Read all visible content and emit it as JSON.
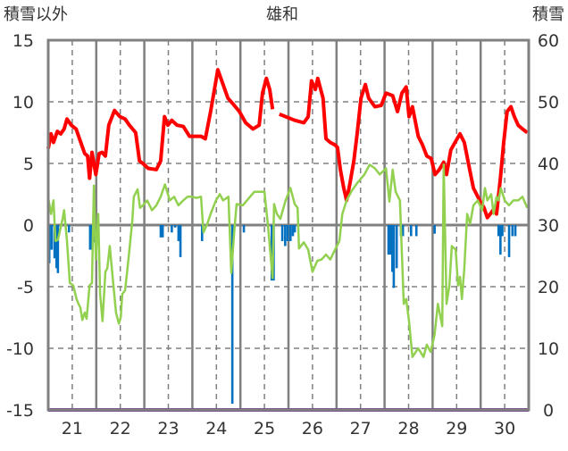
{
  "chart_data": {
    "type": "line",
    "title": "雄和",
    "ylabel_left": "積雪以外",
    "ylabel_right": "積雪",
    "x_unit": "day of month (fractional, 21.0 = 21st 00:00)",
    "xlim": [
      21,
      31
    ],
    "xticks": [
      {
        "at": 21.5,
        "label": "21"
      },
      {
        "at": 22.5,
        "label": "22"
      },
      {
        "at": 23.5,
        "label": "23"
      },
      {
        "at": 24.5,
        "label": "24"
      },
      {
        "at": 25.5,
        "label": "25"
      },
      {
        "at": 26.5,
        "label": "26"
      },
      {
        "at": 27.5,
        "label": "27"
      },
      {
        "at": 28.5,
        "label": "28"
      },
      {
        "at": 29.5,
        "label": "29"
      },
      {
        "at": 30.5,
        "label": "30"
      }
    ],
    "ylim_left": [
      -15,
      15
    ],
    "yticks_left": [
      "15",
      "10",
      "5",
      "0",
      "-5",
      "-10",
      "-15"
    ],
    "ylim_right": [
      0,
      60
    ],
    "yticks_right": [
      "60",
      "50",
      "40",
      "30",
      "20",
      "10",
      "0"
    ],
    "grid": true,
    "colors": {
      "red": "#ff0000",
      "green": "#92d050",
      "blue": "#0070c0",
      "purple": "#7030a0",
      "frame": "#808080"
    },
    "series": [
      {
        "name": "red",
        "axis": "left",
        "kind": "line",
        "points": [
          [
            21.0,
            6.2
          ],
          [
            21.06,
            7.4
          ],
          [
            21.11,
            6.7
          ],
          [
            21.19,
            7.6
          ],
          [
            21.26,
            7.4
          ],
          [
            21.33,
            7.8
          ],
          [
            21.39,
            8.6
          ],
          [
            21.48,
            8.1
          ],
          [
            21.58,
            7.8
          ],
          [
            21.67,
            6.8
          ],
          [
            21.76,
            5.8
          ],
          [
            21.82,
            5.6
          ],
          [
            21.86,
            3.8
          ],
          [
            21.91,
            5.9
          ],
          [
            21.99,
            4.1
          ],
          [
            22.06,
            5.8
          ],
          [
            22.12,
            5.9
          ],
          [
            22.19,
            5.6
          ],
          [
            22.26,
            8.1
          ],
          [
            22.38,
            9.3
          ],
          [
            22.49,
            8.8
          ],
          [
            22.6,
            8.6
          ],
          [
            22.69,
            8.1
          ],
          [
            22.82,
            7.5
          ],
          [
            22.9,
            5.2
          ],
          [
            22.97,
            5.0
          ],
          [
            23.08,
            4.6
          ],
          [
            23.25,
            4.5
          ],
          [
            23.34,
            5.2
          ],
          [
            23.42,
            8.8
          ],
          [
            23.49,
            8.1
          ],
          [
            23.57,
            8.5
          ],
          [
            23.68,
            8.1
          ],
          [
            23.81,
            8.0
          ],
          [
            23.94,
            7.2
          ],
          [
            24.05,
            7.2
          ],
          [
            24.18,
            7.2
          ],
          [
            24.27,
            7.0
          ],
          [
            24.38,
            9.2
          ],
          [
            24.46,
            11.0
          ],
          [
            24.53,
            12.6
          ],
          [
            24.64,
            11.4
          ],
          [
            24.74,
            10.3
          ],
          [
            24.83,
            9.9
          ],
          [
            24.98,
            9.2
          ],
          [
            25.11,
            8.3
          ],
          [
            25.26,
            7.8
          ],
          [
            25.39,
            8.1
          ],
          [
            25.46,
            10.7
          ],
          [
            25.54,
            11.9
          ],
          [
            25.61,
            11.0
          ],
          [
            25.67,
            9.4
          ],
          [
            25.74,
            null
          ],
          [
            25.81,
            9.0
          ],
          [
            25.94,
            8.8
          ],
          [
            26.13,
            8.5
          ],
          [
            26.32,
            8.3
          ],
          [
            26.41,
            8.8
          ],
          [
            26.48,
            11.7
          ],
          [
            26.56,
            11.0
          ],
          [
            26.61,
            11.9
          ],
          [
            26.72,
            10.3
          ],
          [
            26.78,
            7.0
          ],
          [
            26.87,
            6.7
          ],
          [
            26.97,
            6.5
          ],
          [
            27.02,
            6.3
          ],
          [
            27.08,
            4.5
          ],
          [
            27.15,
            3.0
          ],
          [
            27.21,
            2.0
          ],
          [
            27.28,
            3.4
          ],
          [
            27.36,
            5.2
          ],
          [
            27.43,
            7.4
          ],
          [
            27.51,
            10.3
          ],
          [
            27.6,
            11.4
          ],
          [
            27.67,
            10.3
          ],
          [
            27.8,
            9.6
          ],
          [
            27.93,
            9.7
          ],
          [
            28.03,
            10.7
          ],
          [
            28.17,
            10.5
          ],
          [
            28.27,
            9.2
          ],
          [
            28.36,
            10.7
          ],
          [
            28.45,
            11.2
          ],
          [
            28.51,
            8.8
          ],
          [
            28.58,
            9.6
          ],
          [
            28.7,
            7.2
          ],
          [
            28.79,
            6.5
          ],
          [
            28.88,
            5.6
          ],
          [
            28.97,
            5.4
          ],
          [
            29.05,
            4.1
          ],
          [
            29.14,
            4.5
          ],
          [
            29.23,
            5.1
          ],
          [
            29.29,
            4.1
          ],
          [
            29.38,
            6.1
          ],
          [
            29.48,
            6.8
          ],
          [
            29.57,
            7.4
          ],
          [
            29.66,
            6.7
          ],
          [
            29.75,
            4.9
          ],
          [
            29.85,
            3.0
          ],
          [
            29.98,
            2.0
          ],
          [
            30.07,
            1.4
          ],
          [
            30.14,
            0.6
          ],
          [
            30.22,
            1.0
          ],
          [
            30.29,
            1.4
          ],
          [
            30.33,
            0.9
          ],
          [
            30.41,
            3.8
          ],
          [
            30.48,
            6.7
          ],
          [
            30.55,
            9.2
          ],
          [
            30.63,
            9.6
          ],
          [
            30.7,
            8.8
          ],
          [
            30.78,
            8.1
          ],
          [
            30.87,
            7.8
          ],
          [
            30.97,
            7.5
          ]
        ]
      },
      {
        "name": "green",
        "axis": "left",
        "kind": "line",
        "points": [
          [
            21.0,
            2.2
          ],
          [
            21.06,
            0.9
          ],
          [
            21.11,
            2.0
          ],
          [
            21.15,
            -1.3
          ],
          [
            21.2,
            -1.2
          ],
          [
            21.3,
            0.5
          ],
          [
            21.33,
            1.2
          ],
          [
            21.39,
            -1.3
          ],
          [
            21.45,
            -4.7
          ],
          [
            21.52,
            -4.9
          ],
          [
            21.59,
            -6.0
          ],
          [
            21.63,
            -6.4
          ],
          [
            21.67,
            -6.7
          ],
          [
            21.71,
            -7.7
          ],
          [
            21.76,
            -7.1
          ],
          [
            21.8,
            -7.6
          ],
          [
            21.86,
            -4.9
          ],
          [
            21.91,
            -4.7
          ],
          [
            21.95,
            3.2
          ],
          [
            21.99,
            -2.8
          ],
          [
            22.04,
            0.9
          ],
          [
            22.08,
            -5.6
          ],
          [
            22.13,
            -7.8
          ],
          [
            22.19,
            -3.8
          ],
          [
            22.23,
            -3.5
          ],
          [
            22.28,
            -1.7
          ],
          [
            22.34,
            -4.2
          ],
          [
            22.41,
            -7.1
          ],
          [
            22.47,
            -8.0
          ],
          [
            22.51,
            -7.5
          ],
          [
            22.54,
            -5.6
          ],
          [
            22.6,
            -5.3
          ],
          [
            22.67,
            -2.8
          ],
          [
            22.75,
            0.3
          ],
          [
            22.78,
            2.3
          ],
          [
            22.86,
            2.9
          ],
          [
            22.91,
            1.4
          ],
          [
            22.97,
            1.6
          ],
          [
            23.06,
            2.0
          ],
          [
            23.16,
            1.2
          ],
          [
            23.25,
            1.6
          ],
          [
            23.34,
            2.3
          ],
          [
            23.43,
            3.3
          ],
          [
            23.53,
            2.0
          ],
          [
            23.62,
            2.3
          ],
          [
            23.71,
            1.6
          ],
          [
            23.81,
            2.0
          ],
          [
            23.9,
            2.3
          ],
          [
            23.99,
            2.3
          ],
          [
            24.09,
            2.2
          ],
          [
            24.18,
            2.3
          ],
          [
            24.23,
            -0.6
          ],
          [
            24.31,
            0.1
          ],
          [
            24.38,
            0.9
          ],
          [
            24.49,
            2.0
          ],
          [
            24.57,
            2.5
          ],
          [
            24.64,
            2.0
          ],
          [
            24.75,
            2.3
          ],
          [
            24.81,
            -3.9
          ],
          [
            24.87,
            -0.6
          ],
          [
            24.92,
            1.7
          ],
          [
            25.05,
            1.6
          ],
          [
            25.2,
            2.3
          ],
          [
            25.29,
            2.7
          ],
          [
            25.39,
            2.7
          ],
          [
            25.5,
            2.7
          ],
          [
            25.57,
            0.1
          ],
          [
            25.67,
            -4.3
          ],
          [
            25.7,
            1.7
          ],
          [
            25.76,
            0.9
          ],
          [
            25.83,
            0.5
          ],
          [
            25.94,
            2.0
          ],
          [
            26.04,
            3.0
          ],
          [
            26.13,
            1.7
          ],
          [
            26.19,
            1.4
          ],
          [
            26.22,
            -1.9
          ],
          [
            26.32,
            -1.4
          ],
          [
            26.41,
            -2.0
          ],
          [
            26.5,
            -3.8
          ],
          [
            26.6,
            -2.9
          ],
          [
            26.69,
            -2.8
          ],
          [
            26.78,
            -2.4
          ],
          [
            26.87,
            -2.8
          ],
          [
            26.97,
            -2.0
          ],
          [
            27.06,
            -1.3
          ],
          [
            27.12,
            0.9
          ],
          [
            27.21,
            2.0
          ],
          [
            27.32,
            2.8
          ],
          [
            27.43,
            3.4
          ],
          [
            27.58,
            4.1
          ],
          [
            27.69,
            4.9
          ],
          [
            27.8,
            4.6
          ],
          [
            27.9,
            4.1
          ],
          [
            28.03,
            4.6
          ],
          [
            28.1,
            1.9
          ],
          [
            28.17,
            4.5
          ],
          [
            28.23,
            2.7
          ],
          [
            28.32,
            2.0
          ],
          [
            28.4,
            -6.4
          ],
          [
            28.45,
            -6.0
          ],
          [
            28.51,
            -7.8
          ],
          [
            28.58,
            -10.7
          ],
          [
            28.7,
            -10.0
          ],
          [
            28.81,
            -10.7
          ],
          [
            28.88,
            -9.7
          ],
          [
            28.96,
            -10.3
          ],
          [
            29.04,
            -8.9
          ],
          [
            29.11,
            -6.4
          ],
          [
            29.2,
            -8.2
          ],
          [
            29.23,
            4.9
          ],
          [
            29.29,
            -6.4
          ],
          [
            29.35,
            -4.9
          ],
          [
            29.4,
            -1.7
          ],
          [
            29.48,
            -2.0
          ],
          [
            29.53,
            -4.9
          ],
          [
            29.57,
            -4.2
          ],
          [
            29.61,
            -6.0
          ],
          [
            29.66,
            -3.5
          ],
          [
            29.72,
            0.9
          ],
          [
            29.78,
            0.1
          ],
          [
            29.85,
            1.6
          ],
          [
            29.94,
            2.0
          ],
          [
            30.03,
            1.2
          ],
          [
            30.09,
            3.0
          ],
          [
            30.14,
            2.0
          ],
          [
            30.22,
            2.5
          ],
          [
            30.27,
            0.9
          ],
          [
            30.33,
            2.3
          ],
          [
            30.37,
            2.0
          ],
          [
            30.42,
            3.0
          ],
          [
            30.5,
            2.0
          ],
          [
            30.59,
            1.6
          ],
          [
            30.68,
            2.0
          ],
          [
            30.78,
            2.0
          ],
          [
            30.87,
            2.3
          ],
          [
            30.97,
            1.4
          ]
        ]
      },
      {
        "name": "blue",
        "axis": "left",
        "kind": "bar",
        "points": [
          [
            21.02,
            -3.1
          ],
          [
            21.07,
            -2.0
          ],
          [
            21.13,
            -2.7
          ],
          [
            21.17,
            -3.5
          ],
          [
            21.2,
            -3.9
          ],
          [
            21.43,
            -0.6
          ],
          [
            21.87,
            -2.0
          ],
          [
            21.91,
            -2.0
          ],
          [
            21.97,
            -1.4
          ],
          [
            23.34,
            -1.0
          ],
          [
            23.38,
            -1.0
          ],
          [
            23.57,
            -0.6
          ],
          [
            23.64,
            -0.2
          ],
          [
            23.71,
            -1.3
          ],
          [
            23.75,
            -2.6
          ],
          [
            24.2,
            -1.3
          ],
          [
            24.83,
            -14.5
          ],
          [
            25.07,
            -0.6
          ],
          [
            25.65,
            -4.5
          ],
          [
            25.69,
            -4.5
          ],
          [
            25.87,
            -1.3
          ],
          [
            25.93,
            -1.7
          ],
          [
            25.98,
            -1.3
          ],
          [
            26.04,
            -1.3
          ],
          [
            26.09,
            -0.9
          ],
          [
            26.13,
            -0.6
          ],
          [
            28.08,
            -2.4
          ],
          [
            28.12,
            -2.4
          ],
          [
            28.16,
            -3.8
          ],
          [
            28.19,
            -5.1
          ],
          [
            28.25,
            -3.5
          ],
          [
            28.34,
            -0.9
          ],
          [
            28.38,
            -0.9
          ],
          [
            28.55,
            -0.9
          ],
          [
            28.66,
            -0.9
          ],
          [
            29.04,
            -0.7
          ],
          [
            30.37,
            -0.9
          ],
          [
            30.41,
            -2.4
          ],
          [
            30.45,
            -0.9
          ],
          [
            30.59,
            -2.6
          ],
          [
            30.66,
            -0.9
          ],
          [
            30.72,
            -0.9
          ]
        ]
      },
      {
        "name": "purple",
        "axis": "right",
        "kind": "line",
        "points": [
          [
            21.0,
            0
          ],
          [
            31.0,
            0
          ]
        ]
      }
    ]
  }
}
